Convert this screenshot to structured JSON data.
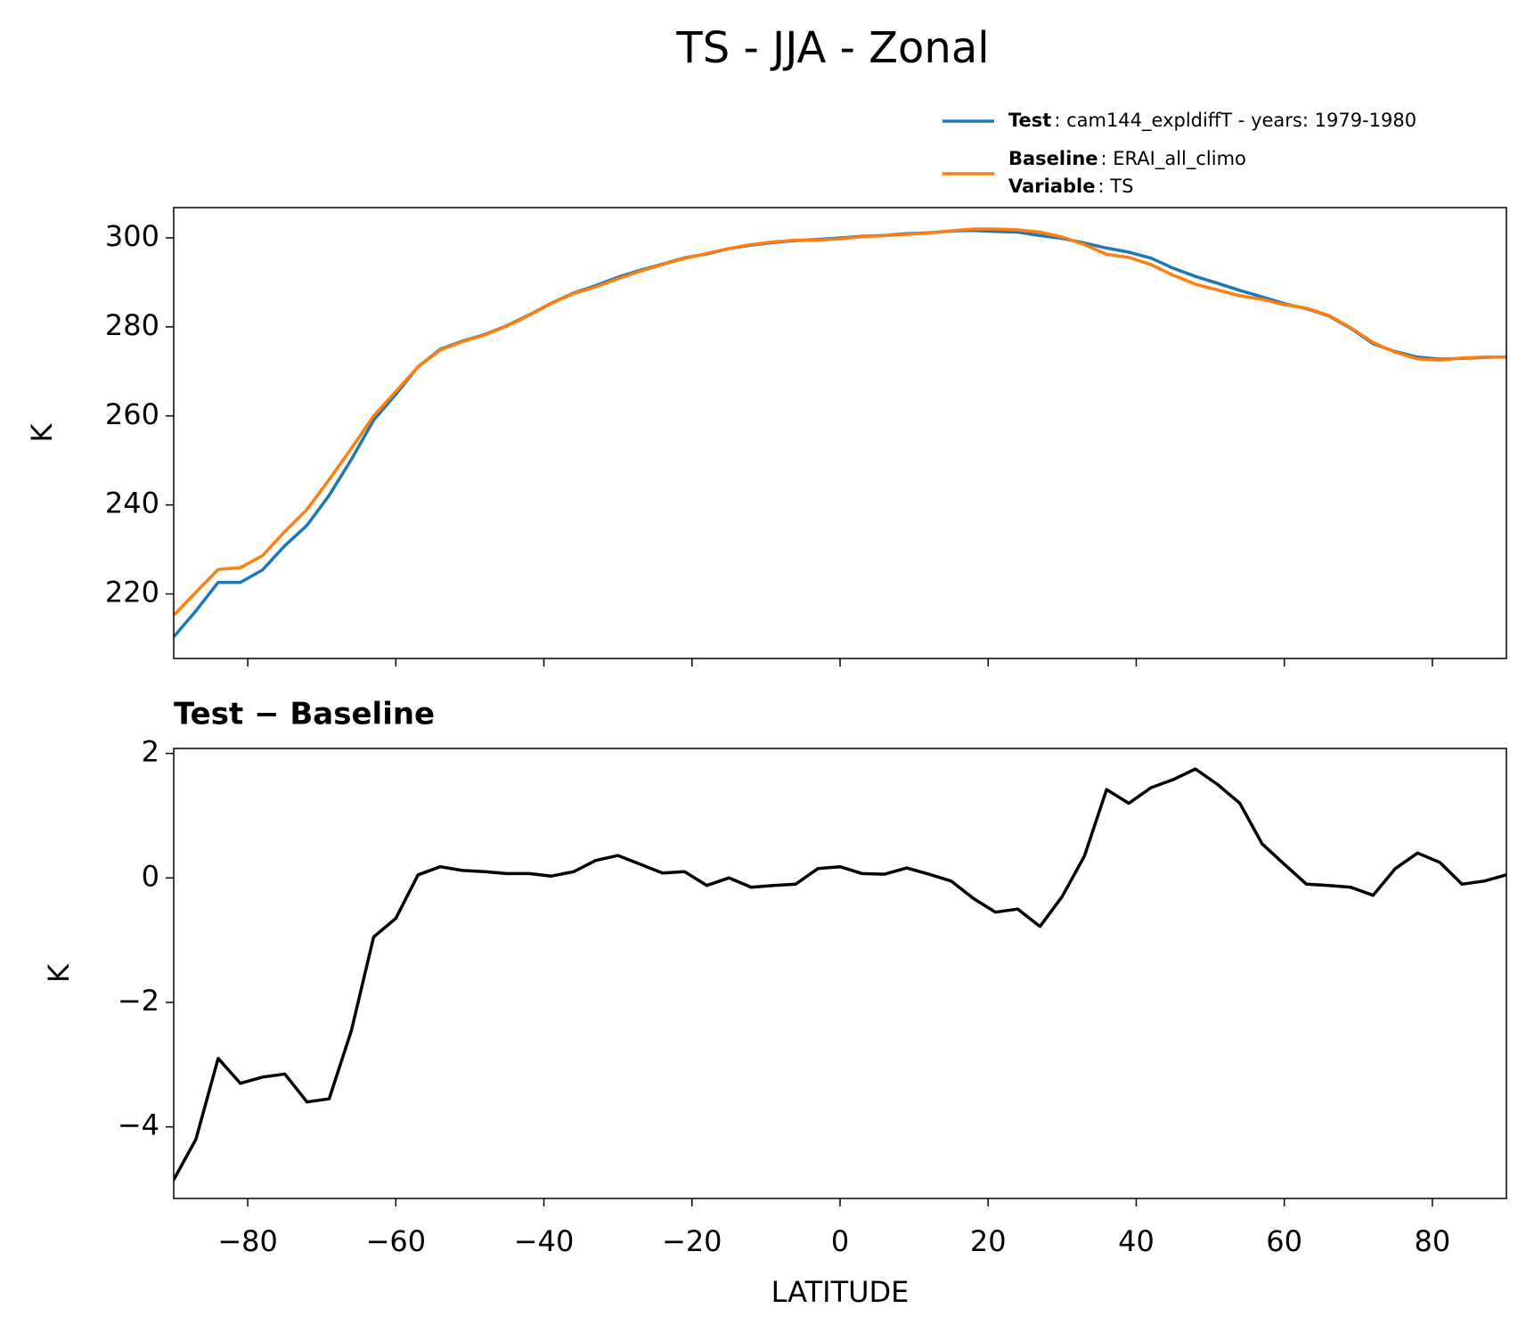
{
  "title": "TS - JJA - Zonal",
  "chart_data": [
    {
      "type": "line",
      "x": [
        -90,
        -87,
        -84,
        -81,
        -78,
        -75,
        -72,
        -69,
        -66,
        -63,
        -60,
        -57,
        -54,
        -51,
        -48,
        -45,
        -42,
        -39,
        -36,
        -33,
        -30,
        -27,
        -24,
        -21,
        -18,
        -15,
        -12,
        -9,
        -6,
        -3,
        0,
        3,
        6,
        9,
        12,
        15,
        18,
        21,
        24,
        27,
        30,
        33,
        36,
        39,
        42,
        45,
        48,
        51,
        54,
        57,
        60,
        63,
        66,
        69,
        72,
        75,
        78,
        81,
        84,
        87,
        90
      ],
      "series": [
        {
          "name": "Test",
          "description": ": cam144_expldiffT - years: 1979-1980",
          "color": "#1f77b4",
          "values": [
            210.35,
            216.2,
            222.6,
            222.6,
            225.4,
            230.85,
            235.4,
            242.15,
            250.25,
            259.05,
            264.85,
            271.05,
            274.98,
            276.82,
            278.3,
            280.27,
            282.67,
            285.33,
            287.6,
            289.28,
            291.16,
            292.72,
            294.08,
            295.5,
            296.38,
            297.6,
            298.35,
            298.98,
            299.4,
            299.65,
            299.98,
            300.37,
            300.56,
            300.96,
            301.16,
            301.55,
            301.67,
            301.45,
            301.3,
            300.52,
            299.9,
            298.85,
            297.72,
            296.8,
            295.45,
            293.18,
            291.35,
            289.8,
            288.2,
            286.75,
            285.22,
            284.1,
            282.48,
            279.65,
            276.22,
            274.45,
            273.2,
            272.75,
            272.9,
            273.15,
            273.25
          ]
        },
        {
          "name": "Baseline",
          "description": ": ERAI_all_climo",
          "color": "#ff7f0e",
          "values": [
            215.2,
            220.4,
            225.5,
            225.9,
            228.6,
            234,
            239,
            245.7,
            252.7,
            260,
            265.5,
            271,
            274.8,
            276.7,
            278.2,
            280.2,
            282.6,
            285.3,
            287.5,
            289,
            290.8,
            292.5,
            294,
            295.4,
            296.5,
            297.6,
            298.5,
            299.1,
            299.5,
            299.5,
            299.8,
            300.3,
            300.5,
            300.8,
            301.1,
            301.6,
            302,
            302,
            301.8,
            301.3,
            300.2,
            298.5,
            296.3,
            295.6,
            294,
            291.6,
            289.6,
            288.3,
            287,
            286.2,
            285,
            284.2,
            282.6,
            279.8,
            276.5,
            274.3,
            272.8,
            272.5,
            273,
            273.2,
            273.2
          ]
        }
      ],
      "legend_extra": {
        "name": "Variable",
        "description": ": TS"
      },
      "ylabel": "K",
      "xlim": [
        -90,
        90
      ],
      "ylim": [
        205.5,
        306.8
      ],
      "yticks": [
        220,
        240,
        260,
        280,
        300
      ]
    },
    {
      "type": "line",
      "title": "Test − Baseline",
      "x": [
        -90,
        -87,
        -84,
        -81,
        -78,
        -75,
        -72,
        -69,
        -66,
        -63,
        -60,
        -57,
        -54,
        -51,
        -48,
        -45,
        -42,
        -39,
        -36,
        -33,
        -30,
        -27,
        -24,
        -21,
        -18,
        -15,
        -12,
        -9,
        -6,
        -3,
        0,
        3,
        6,
        9,
        12,
        15,
        18,
        21,
        24,
        27,
        30,
        33,
        36,
        39,
        42,
        45,
        48,
        51,
        54,
        57,
        60,
        63,
        66,
        69,
        72,
        75,
        78,
        81,
        84,
        87,
        90
      ],
      "series": [
        {
          "color": "#000000",
          "values": [
            -4.85,
            -4.2,
            -2.9,
            -3.3,
            -3.2,
            -3.15,
            -3.6,
            -3.55,
            -2.45,
            -0.95,
            -0.65,
            0.05,
            0.18,
            0.12,
            0.1,
            0.07,
            0.07,
            0.03,
            0.1,
            0.28,
            0.36,
            0.22,
            0.08,
            0.1,
            -0.12,
            0,
            -0.15,
            -0.12,
            -0.1,
            0.15,
            0.18,
            0.07,
            0.06,
            0.16,
            0.06,
            -0.05,
            -0.33,
            -0.55,
            -0.5,
            -0.78,
            -0.3,
            0.35,
            1.42,
            1.2,
            1.45,
            1.58,
            1.75,
            1.5,
            1.2,
            0.55,
            0.22,
            -0.1,
            -0.12,
            -0.15,
            -0.28,
            0.15,
            0.4,
            0.25,
            -0.1,
            -0.05,
            0.05
          ]
        }
      ],
      "xlabel": "LATITUDE",
      "ylabel": "K",
      "xlim": [
        -90,
        90
      ],
      "ylim": [
        -5.15,
        2.08
      ],
      "xticks": [
        {
          "value": -80,
          "label": "−80"
        },
        {
          "value": -60,
          "label": "−60"
        },
        {
          "value": -40,
          "label": "−40"
        },
        {
          "value": -20,
          "label": "−20"
        },
        0,
        20,
        40,
        60,
        80
      ],
      "yticks": [
        {
          "value": -4,
          "label": "−4"
        },
        {
          "value": -2,
          "label": "−2"
        },
        0,
        2
      ]
    }
  ]
}
